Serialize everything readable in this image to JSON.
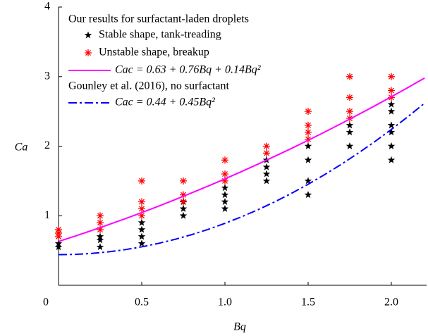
{
  "chart_data": {
    "type": "scatter",
    "xlabel": "Bq",
    "ylabel": "Ca",
    "legend_title": "Our results for surfactant-laden droplets",
    "reference_label": "Gounley et al. (2016), no surfactant",
    "reference_color": "#0000ff",
    "xlim": [
      0,
      2.2
    ],
    "ylim": [
      0,
      4
    ],
    "xticks": [
      0,
      0.5,
      {
        "value": 1,
        "label": "1.0"
      },
      1.5,
      {
        "value": 2,
        "label": "2.0"
      }
    ],
    "yticks": [
      1,
      2,
      3,
      4
    ],
    "series": [
      {
        "name": "Stable shape, tank-treading",
        "type": "scatter",
        "marker": "star",
        "color": "#000000",
        "x": [
          0,
          0,
          0.25,
          0.25,
          0.25,
          0.5,
          0.5,
          0.5,
          0.5,
          0.75,
          0.75,
          0.75,
          1,
          1,
          1,
          1,
          1.25,
          1.25,
          1.25,
          1.25,
          1.5,
          1.5,
          1.5,
          1.5,
          1.75,
          1.75,
          1.75,
          2,
          2,
          2,
          2,
          2,
          2
        ],
        "values": [
          0.55,
          0.6,
          0.55,
          0.65,
          0.7,
          0.6,
          0.7,
          0.8,
          0.9,
          1.0,
          1.1,
          1.2,
          1.1,
          1.2,
          1.3,
          1.4,
          1.5,
          1.6,
          1.7,
          1.8,
          1.3,
          1.5,
          1.8,
          2.0,
          2.0,
          2.2,
          2.3,
          1.8,
          2.0,
          2.2,
          2.3,
          2.5,
          2.6
        ]
      },
      {
        "name": "Unstable shape, breakup",
        "type": "scatter",
        "marker": "asterisk",
        "color": "#ff0000",
        "x": [
          0,
          0,
          0,
          0.25,
          0.25,
          0.25,
          0.5,
          0.5,
          0.5,
          0.5,
          0.75,
          0.75,
          0.75,
          1,
          1,
          1,
          1.25,
          1.25,
          1.5,
          1.5,
          1.5,
          1.5,
          1.75,
          1.75,
          1.75,
          1.75,
          2,
          2,
          2
        ],
        "values": [
          0.7,
          0.75,
          0.8,
          0.8,
          0.9,
          1.0,
          1.0,
          1.1,
          1.2,
          1.5,
          1.2,
          1.3,
          1.5,
          1.5,
          1.6,
          1.8,
          1.9,
          2.0,
          2.1,
          2.2,
          2.3,
          2.5,
          2.4,
          2.5,
          2.7,
          3.0,
          2.7,
          2.8,
          3.0
        ]
      },
      {
        "name": "Cac = 0.63 + 0.76Bq + 0.14Bq²",
        "type": "line",
        "style": "solid",
        "color": "#ff00ff",
        "x": [
          0,
          0.1,
          0.2,
          0.3,
          0.4,
          0.5,
          0.6,
          0.7,
          0.8,
          0.9,
          1,
          1.1,
          1.2,
          1.3,
          1.4,
          1.5,
          1.6,
          1.7,
          1.8,
          1.9,
          2,
          2.1,
          2.2
        ],
        "values": [
          0.63,
          0.707,
          0.788,
          0.871,
          0.956,
          1.045,
          1.136,
          1.231,
          1.328,
          1.427,
          1.53,
          1.635,
          1.744,
          1.855,
          1.968,
          2.085,
          2.204,
          2.327,
          2.452,
          2.579,
          2.71,
          2.843,
          2.98
        ]
      },
      {
        "name": "Cac = 0.44 + 0.45Bq²",
        "type": "line",
        "style": "dashdot",
        "color": "#0000ff",
        "x": [
          0,
          0.1,
          0.2,
          0.3,
          0.4,
          0.5,
          0.6,
          0.7,
          0.8,
          0.9,
          1,
          1.1,
          1.2,
          1.3,
          1.4,
          1.5,
          1.6,
          1.7,
          1.8,
          1.9,
          2,
          2.1,
          2.2
        ],
        "values": [
          0.44,
          0.4445,
          0.458,
          0.4805,
          0.512,
          0.5525,
          0.602,
          0.6605,
          0.728,
          0.8045,
          0.89,
          0.9845,
          1.088,
          1.2005,
          1.322,
          1.4525,
          1.592,
          1.7405,
          1.898,
          2.0645,
          2.24,
          2.4245,
          2.618
        ]
      }
    ]
  }
}
